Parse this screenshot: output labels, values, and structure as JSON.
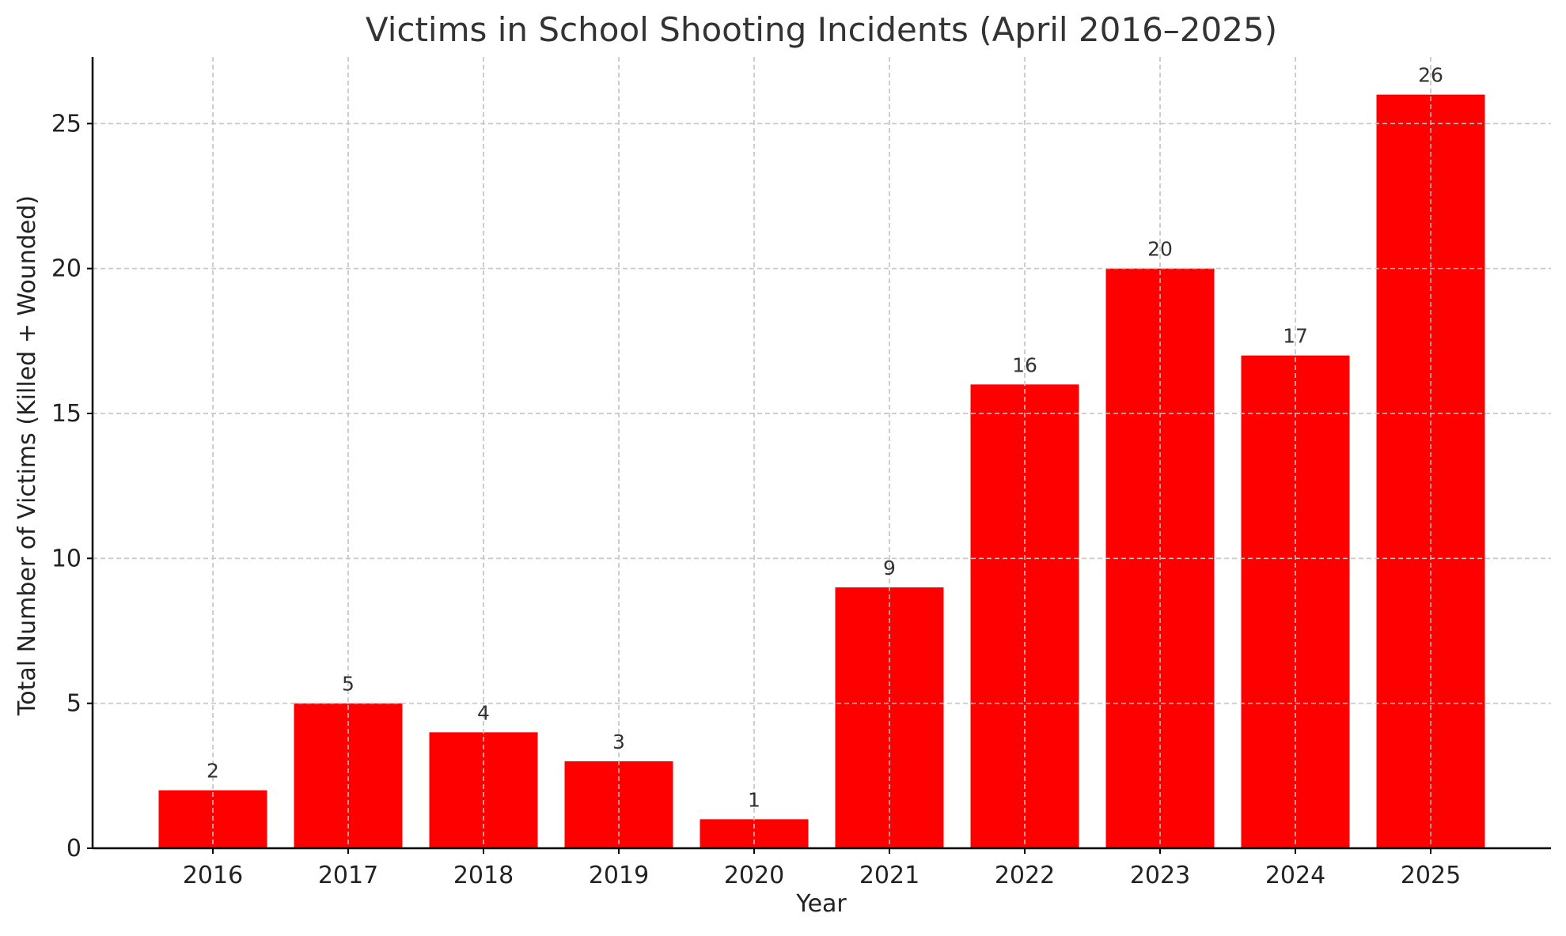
{
  "chart_data": {
    "type": "bar",
    "title": "Victims in School Shooting Incidents (April 2016–2025)",
    "xlabel": "Year",
    "ylabel": "Total Number of Victims (Killed + Wounded)",
    "categories": [
      "2016",
      "2017",
      "2018",
      "2019",
      "2020",
      "2021",
      "2022",
      "2023",
      "2024",
      "2025"
    ],
    "values": [
      2,
      5,
      4,
      3,
      1,
      9,
      16,
      20,
      17,
      26
    ],
    "data_labels": [
      "2",
      "5",
      "4",
      "3",
      "1",
      "9",
      "16",
      "20",
      "17",
      "26"
    ],
    "ylim": [
      0,
      27.3
    ],
    "yticks": [
      0,
      5,
      10,
      15,
      20,
      25
    ],
    "ytick_labels": [
      "0",
      "5",
      "10",
      "15",
      "20",
      "25"
    ],
    "grid": true,
    "bar_color": "#ff0000"
  }
}
